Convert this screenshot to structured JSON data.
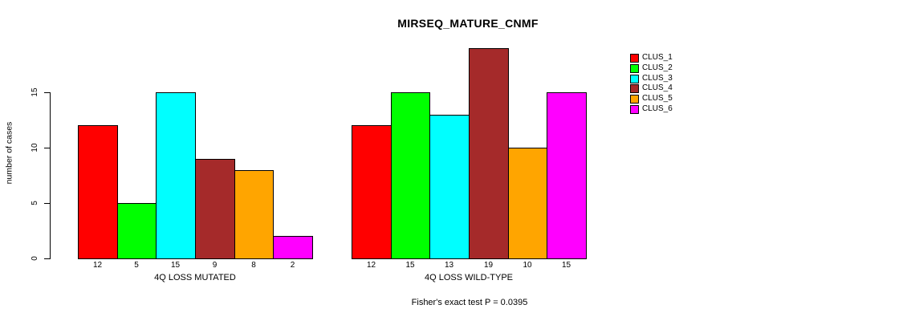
{
  "chart_data": {
    "type": "bar",
    "title": "MIRSEQ_MATURE_CNMF",
    "ylabel": "number of cases",
    "xlabel": "",
    "annotation": "Fisher's exact test P = 0.0395",
    "yticks": [
      0,
      5,
      10,
      15
    ],
    "ylim": [
      0,
      19.9
    ],
    "grid": false,
    "legend_position": "right",
    "legend": [
      "CLUS_1",
      "CLUS_2",
      "CLUS_3",
      "CLUS_4",
      "CLUS_5",
      "CLUS_6"
    ],
    "colors": [
      "#FF0000",
      "#00FF00",
      "#00FFFF",
      "#A52A2A",
      "#FFA500",
      "#FF00FF"
    ],
    "bar_border_color": "#000000",
    "groups": [
      {
        "label": "4Q LOSS MUTATED",
        "values": [
          12,
          5,
          15,
          9,
          8,
          2
        ]
      },
      {
        "label": "4Q LOSS WILD-TYPE",
        "values": [
          12,
          15,
          13,
          19,
          10,
          15
        ]
      }
    ]
  }
}
